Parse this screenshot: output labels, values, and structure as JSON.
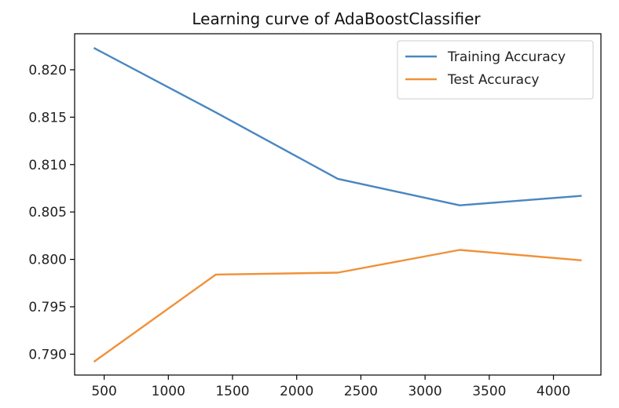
{
  "chart_data": {
    "type": "line",
    "title": "Learning curve of AdaBoostClassifier",
    "xlabel": "",
    "ylabel": "",
    "x": [
      420,
      1370,
      2320,
      3270,
      4220
    ],
    "series": [
      {
        "name": "Training Accuracy",
        "color": "#4a86c0",
        "values": [
          0.8223,
          0.8155,
          0.8085,
          0.8057,
          0.8067
        ]
      },
      {
        "name": "Test Accuracy",
        "color": "#f0913a",
        "values": [
          0.7892,
          0.7984,
          0.7986,
          0.801,
          0.7999
        ]
      }
    ],
    "xlim": [
      270,
      4370
    ],
    "ylim": [
      0.7878,
      0.8238
    ],
    "xticks": [
      500,
      1000,
      1500,
      2000,
      2500,
      3000,
      3500,
      4000
    ],
    "xtick_labels": [
      "500",
      "1000",
      "1500",
      "2000",
      "2500",
      "3000",
      "3500",
      "4000"
    ],
    "yticks": [
      0.79,
      0.795,
      0.8,
      0.805,
      0.81,
      0.815,
      0.82
    ],
    "ytick_labels": [
      "0.790",
      "0.795",
      "0.800",
      "0.805",
      "0.810",
      "0.815",
      "0.820"
    ],
    "grid": false,
    "legend_position": "top-right"
  }
}
